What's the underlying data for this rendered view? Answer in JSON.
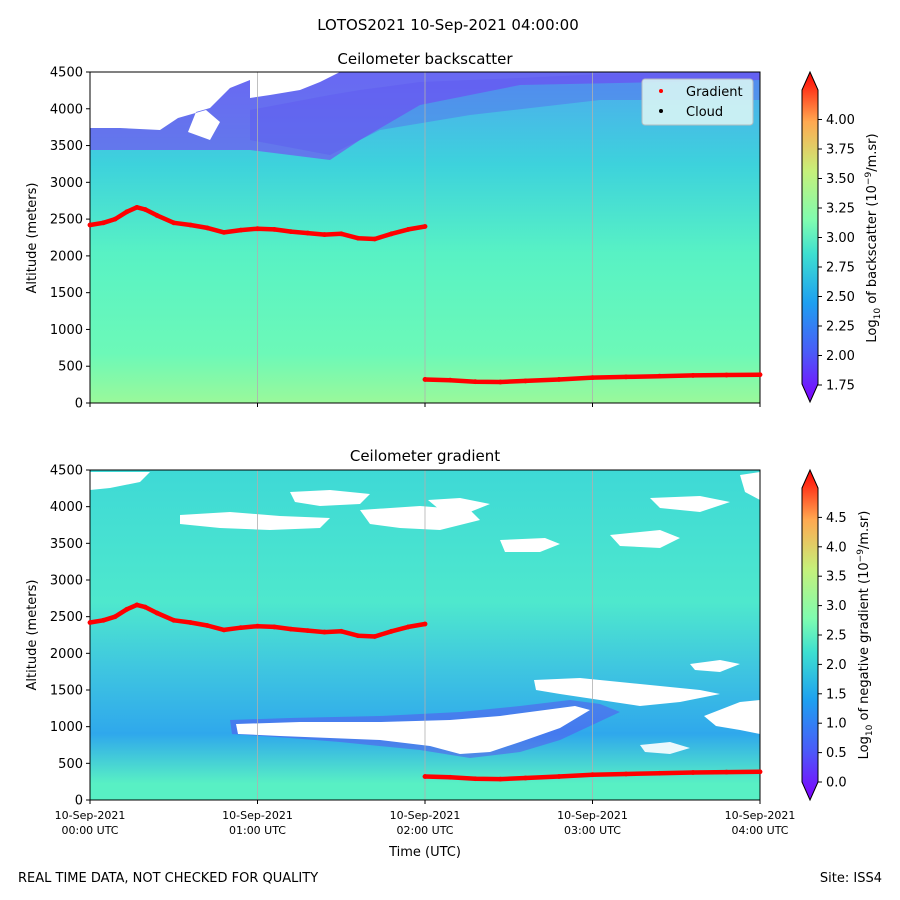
{
  "figure": {
    "suptitle": "LOTOS2021 10-Sep-2021 04:00:00",
    "footer_left": "REAL TIME DATA, NOT CHECKED FOR QUALITY",
    "footer_right": "Site: ISS4"
  },
  "chart_data": [
    {
      "type": "heatmap",
      "title": "Ceilometer backscatter",
      "xlabel": "",
      "ylabel": "Altitude (meters)",
      "xlim": [
        0,
        4
      ],
      "ylim": [
        0,
        4500
      ],
      "yticks": [
        0,
        500,
        1000,
        1500,
        2000,
        2500,
        3000,
        3500,
        4000,
        4500
      ],
      "xticks": [
        0,
        1,
        2,
        3,
        4
      ],
      "xgrid": true,
      "colorbar": {
        "label": "Log",
        "label_sub": "10",
        "label_rest": " of backscatter (10",
        "label_sup": "−9",
        "label_end": "/m.sr)",
        "range": [
          1.75,
          4.25
        ],
        "ticks": [
          "1.75",
          "2.00",
          "2.25",
          "2.50",
          "2.75",
          "3.00",
          "3.25",
          "3.50",
          "3.75",
          "4.00"
        ]
      },
      "legend": {
        "placement": "upper-right",
        "entries": [
          {
            "name": "Gradient",
            "color": "#ff0000"
          },
          {
            "name": "Cloud",
            "color": "#000000"
          }
        ]
      },
      "series": [
        {
          "name": "Gradient",
          "color": "#ff0000",
          "points": [
            [
              0.0,
              2420
            ],
            [
              0.08,
              2450
            ],
            [
              0.15,
              2500
            ],
            [
              0.22,
              2600
            ],
            [
              0.28,
              2660
            ],
            [
              0.33,
              2630
            ],
            [
              0.4,
              2550
            ],
            [
              0.5,
              2450
            ],
            [
              0.6,
              2420
            ],
            [
              0.7,
              2380
            ],
            [
              0.8,
              2320
            ],
            [
              0.9,
              2350
            ],
            [
              1.0,
              2370
            ],
            [
              1.1,
              2360
            ],
            [
              1.2,
              2330
            ],
            [
              1.3,
              2310
            ],
            [
              1.4,
              2290
            ],
            [
              1.5,
              2300
            ],
            [
              1.6,
              2240
            ],
            [
              1.7,
              2230
            ],
            [
              1.8,
              2300
            ],
            [
              1.9,
              2360
            ],
            [
              2.0,
              2400
            ]
          ]
        },
        {
          "name": "Gradient",
          "color": "#ff0000",
          "points": [
            [
              2.0,
              320
            ],
            [
              2.15,
              310
            ],
            [
              2.3,
              290
            ],
            [
              2.45,
              285
            ],
            [
              2.6,
              300
            ],
            [
              2.8,
              320
            ],
            [
              3.0,
              345
            ],
            [
              3.2,
              355
            ],
            [
              3.4,
              365
            ],
            [
              3.6,
              375
            ],
            [
              3.8,
              380
            ],
            [
              4.0,
              385
            ]
          ]
        }
      ]
    },
    {
      "type": "heatmap",
      "title": "Ceilometer gradient",
      "xlabel": "Time (UTC)",
      "ylabel": "Altitude (meters)",
      "xlim": [
        0,
        4
      ],
      "ylim": [
        0,
        4500
      ],
      "yticks": [
        0,
        500,
        1000,
        1500,
        2000,
        2500,
        3000,
        3500,
        4000,
        4500
      ],
      "xticks": [
        0,
        1,
        2,
        3,
        4
      ],
      "xtick_labels": [
        [
          "10-Sep-2021",
          "00:00 UTC"
        ],
        [
          "10-Sep-2021",
          "01:00 UTC"
        ],
        [
          "10-Sep-2021",
          "02:00 UTC"
        ],
        [
          "10-Sep-2021",
          "03:00 UTC"
        ],
        [
          "10-Sep-2021",
          "04:00 UTC"
        ]
      ],
      "xgrid": true,
      "colorbar": {
        "label": "Log",
        "label_sub": "10",
        "label_rest": " of negative gradient (10",
        "label_sup": "−9",
        "label_end": "/m.sr)",
        "range": [
          0,
          5
        ],
        "ticks": [
          "0.0",
          "0.5",
          "1.0",
          "1.5",
          "2.0",
          "2.5",
          "3.0",
          "3.5",
          "4.0",
          "4.5"
        ]
      },
      "series": [
        {
          "name": "Gradient",
          "color": "#ff0000",
          "points": [
            [
              0.0,
              2420
            ],
            [
              0.08,
              2450
            ],
            [
              0.15,
              2500
            ],
            [
              0.22,
              2600
            ],
            [
              0.28,
              2660
            ],
            [
              0.33,
              2630
            ],
            [
              0.4,
              2550
            ],
            [
              0.5,
              2450
            ],
            [
              0.6,
              2420
            ],
            [
              0.7,
              2380
            ],
            [
              0.8,
              2320
            ],
            [
              0.9,
              2350
            ],
            [
              1.0,
              2370
            ],
            [
              1.1,
              2360
            ],
            [
              1.2,
              2330
            ],
            [
              1.3,
              2310
            ],
            [
              1.4,
              2290
            ],
            [
              1.5,
              2300
            ],
            [
              1.6,
              2240
            ],
            [
              1.7,
              2230
            ],
            [
              1.8,
              2300
            ],
            [
              1.9,
              2360
            ],
            [
              2.0,
              2400
            ]
          ]
        },
        {
          "name": "Gradient",
          "color": "#ff0000",
          "points": [
            [
              2.0,
              320
            ],
            [
              2.15,
              310
            ],
            [
              2.3,
              290
            ],
            [
              2.45,
              285
            ],
            [
              2.6,
              300
            ],
            [
              2.8,
              320
            ],
            [
              3.0,
              345
            ],
            [
              3.2,
              355
            ],
            [
              3.4,
              365
            ],
            [
              3.6,
              375
            ],
            [
              3.8,
              380
            ],
            [
              4.0,
              385
            ]
          ]
        }
      ]
    }
  ]
}
